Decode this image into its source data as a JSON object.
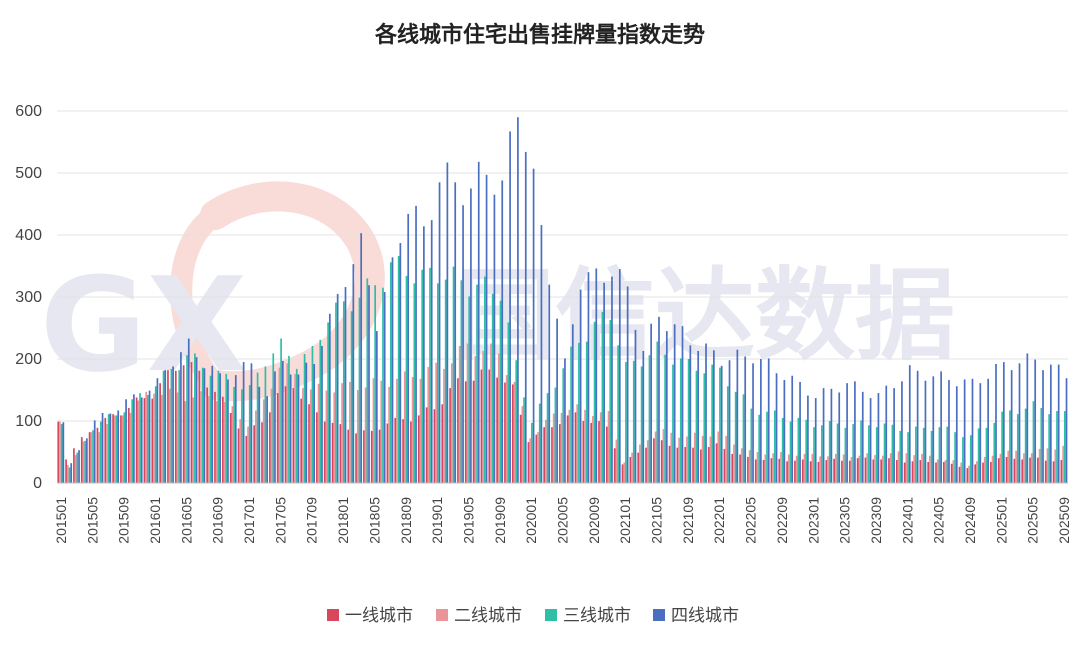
{
  "chart_data": {
    "type": "bar",
    "title": "各线城市住宅出售挂牌量指数走势",
    "xlabel": "",
    "ylabel": "",
    "ylim": [
      0,
      650
    ],
    "yticks": [
      0,
      100,
      200,
      300,
      400,
      500,
      600
    ],
    "grid": "horizontal",
    "legend_position": "bottom",
    "xtick_labels": [
      "201501",
      "201505",
      "201509",
      "201601",
      "201605",
      "201609",
      "201701",
      "201705",
      "201709",
      "201801",
      "201805",
      "201809",
      "201901",
      "201905",
      "201909",
      "202001",
      "202005",
      "202009",
      "202101",
      "202105",
      "202109",
      "202201",
      "202205",
      "202209",
      "202301",
      "202305",
      "202309",
      "202401",
      "202405",
      "202409",
      "202501",
      "202505",
      "202509"
    ],
    "series": [
      {
        "name": "一线城市",
        "color": "#d9475c"
      },
      {
        "name": "二线城市",
        "color": "#e9959a"
      },
      {
        "name": "三线城市",
        "color": "#2fbfa6"
      },
      {
        "name": "四线城市",
        "color": "#4a6fc0"
      }
    ],
    "categories": [],
    "keypoints": [
      {
        "s": 0,
        "t": [
          [
            0,
            100
          ],
          [
            1,
            40
          ],
          [
            4,
            85
          ],
          [
            8,
            115
          ],
          [
            12,
            145
          ],
          [
            16,
            200
          ],
          [
            20,
            150
          ],
          [
            24,
            75
          ],
          [
            26,
            100
          ],
          [
            28,
            140
          ],
          [
            30,
            160
          ],
          [
            32,
            120
          ],
          [
            36,
            90
          ],
          [
            40,
            80
          ],
          [
            42,
            100
          ],
          [
            44,
            100
          ],
          [
            48,
            120
          ],
          [
            50,
            150
          ],
          [
            52,
            170
          ],
          [
            56,
            180
          ],
          [
            58,
            150
          ],
          [
            60,
            70
          ],
          [
            64,
            100
          ],
          [
            66,
            110
          ],
          [
            70,
            90
          ],
          [
            72,
            30
          ],
          [
            76,
            70
          ],
          [
            80,
            55
          ],
          [
            84,
            60
          ],
          [
            88,
            40
          ],
          [
            96,
            35
          ],
          [
            104,
            40
          ],
          [
            108,
            35
          ],
          [
            112,
            35
          ],
          [
            116,
            25
          ],
          [
            120,
            40
          ],
          [
            124,
            40
          ],
          [
            128,
            35
          ],
          [
            132,
            35
          ],
          [
            136,
            30
          ],
          [
            140,
            30
          ]
        ]
      },
      {
        "s": 1,
        "t": [
          [
            0,
            95
          ],
          [
            1,
            30
          ],
          [
            4,
            80
          ],
          [
            8,
            110
          ],
          [
            12,
            150
          ],
          [
            16,
            140
          ],
          [
            20,
            140
          ],
          [
            24,
            95
          ],
          [
            26,
            130
          ],
          [
            28,
            190
          ],
          [
            30,
            175
          ],
          [
            32,
            150
          ],
          [
            36,
            155
          ],
          [
            40,
            160
          ],
          [
            44,
            170
          ],
          [
            48,
            185
          ],
          [
            50,
            200
          ],
          [
            52,
            220
          ],
          [
            56,
            210
          ],
          [
            58,
            160
          ],
          [
            60,
            75
          ],
          [
            64,
            120
          ],
          [
            66,
            120
          ],
          [
            70,
            110
          ],
          [
            72,
            35
          ],
          [
            76,
            85
          ],
          [
            80,
            75
          ],
          [
            84,
            80
          ],
          [
            88,
            50
          ],
          [
            96,
            45
          ],
          [
            104,
            45
          ],
          [
            108,
            50
          ],
          [
            112,
            40
          ],
          [
            116,
            30
          ],
          [
            120,
            50
          ],
          [
            124,
            50
          ],
          [
            128,
            60
          ],
          [
            132,
            55
          ],
          [
            136,
            35
          ],
          [
            140,
            40
          ]
        ]
      },
      {
        "s": 2,
        "t": [
          [
            0,
            100
          ],
          [
            1,
            25
          ],
          [
            4,
            90
          ],
          [
            8,
            120
          ],
          [
            12,
            160
          ],
          [
            16,
            205
          ],
          [
            20,
            175
          ],
          [
            24,
            150
          ],
          [
            26,
            200
          ],
          [
            28,
            220
          ],
          [
            30,
            195
          ],
          [
            32,
            210
          ],
          [
            34,
            270
          ],
          [
            36,
            285
          ],
          [
            40,
            320
          ],
          [
            42,
            350
          ],
          [
            44,
            345
          ],
          [
            46,
            330
          ],
          [
            48,
            340
          ],
          [
            52,
            320
          ],
          [
            56,
            310
          ],
          [
            58,
            190
          ],
          [
            60,
            100
          ],
          [
            64,
            185
          ],
          [
            66,
            230
          ],
          [
            70,
            275
          ],
          [
            72,
            185
          ],
          [
            76,
            215
          ],
          [
            80,
            190
          ],
          [
            84,
            180
          ],
          [
            88,
            120
          ],
          [
            96,
            95
          ],
          [
            104,
            95
          ],
          [
            108,
            85
          ],
          [
            112,
            90
          ],
          [
            116,
            75
          ],
          [
            120,
            110
          ],
          [
            124,
            125
          ],
          [
            128,
            110
          ],
          [
            132,
            100
          ],
          [
            136,
            60
          ],
          [
            140,
            60
          ]
        ]
      },
      {
        "s": 3,
        "t": [
          [
            0,
            100
          ],
          [
            1,
            30
          ],
          [
            4,
            100
          ],
          [
            8,
            130
          ],
          [
            12,
            160
          ],
          [
            14,
            200
          ],
          [
            16,
            220
          ],
          [
            20,
            170
          ],
          [
            24,
            190
          ],
          [
            26,
            140
          ],
          [
            28,
            200
          ],
          [
            30,
            170
          ],
          [
            32,
            200
          ],
          [
            34,
            260
          ],
          [
            36,
            335
          ],
          [
            38,
            380
          ],
          [
            40,
            260
          ],
          [
            42,
            345
          ],
          [
            44,
            455
          ],
          [
            46,
            400
          ],
          [
            48,
            495
          ],
          [
            52,
            470
          ],
          [
            54,
            510
          ],
          [
            56,
            470
          ],
          [
            58,
            620
          ],
          [
            60,
            480
          ],
          [
            62,
            340
          ],
          [
            64,
            190
          ],
          [
            66,
            330
          ],
          [
            68,
            330
          ],
          [
            70,
            345
          ],
          [
            72,
            310
          ],
          [
            74,
            215
          ],
          [
            76,
            270
          ],
          [
            80,
            230
          ],
          [
            84,
            200
          ],
          [
            88,
            205
          ],
          [
            92,
            175
          ],
          [
            96,
            140
          ],
          [
            100,
            160
          ],
          [
            104,
            140
          ],
          [
            108,
            180
          ],
          [
            112,
            170
          ],
          [
            116,
            160
          ],
          [
            120,
            190
          ],
          [
            124,
            200
          ],
          [
            128,
            175
          ],
          [
            132,
            140
          ],
          [
            136,
            100
          ],
          [
            140,
            80
          ]
        ]
      }
    ]
  },
  "legend": [
    {
      "label": "一线城市",
      "color": "#d9475c"
    },
    {
      "label": "二线城市",
      "color": "#e9959a"
    },
    {
      "label": "三线城市",
      "color": "#2fbfa6"
    },
    {
      "label": "四线城市",
      "color": "#4a6fc0"
    }
  ],
  "watermark": {
    "logo": "GX",
    "text": "国信达数据"
  }
}
